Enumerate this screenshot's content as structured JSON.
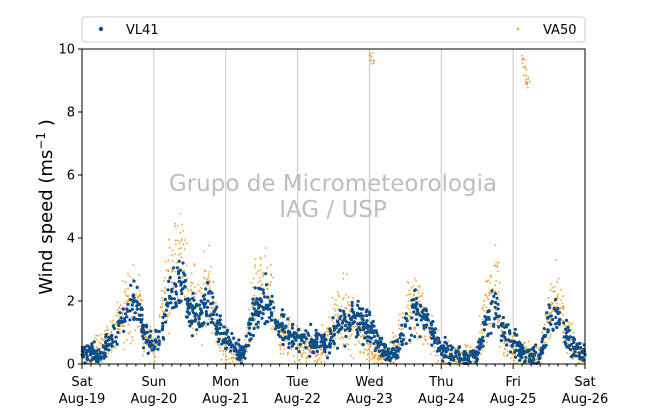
{
  "chart_data": {
    "type": "scatter",
    "ylabel": "Wind speed (ms",
    "ylabel_sup": "−1",
    "ylabel_close": " )",
    "ylim": [
      0,
      10
    ],
    "yticks": [
      "0",
      "2",
      "4",
      "6",
      "8",
      "10"
    ],
    "xlim": [
      "2017-08-19 00:00",
      "2017-08-26 00:00"
    ],
    "xticks": [
      {
        "day": "Sat",
        "date": "Aug-19"
      },
      {
        "day": "Sun",
        "date": "Aug-20"
      },
      {
        "day": "Mon",
        "date": "Aug-21"
      },
      {
        "day": "Tue",
        "date": "Aug-22"
      },
      {
        "day": "Wed",
        "date": "Aug-23"
      },
      {
        "day": "Thu",
        "date": "Aug-24"
      },
      {
        "day": "Fri",
        "date": "Aug-25"
      },
      {
        "day": "Sat",
        "date": "Aug-26"
      }
    ],
    "grid": "vertical",
    "legend_placement": "top",
    "watermark": [
      "Grupo de Micrometeorologia",
      "IAG / USP"
    ],
    "series": [
      {
        "name": "VL41",
        "color": "#0b4f8a",
        "marker": "dot",
        "x": [
          "Aug-19 00:00",
          "Aug-19 03:00",
          "Aug-19 06:00",
          "Aug-19 09:00",
          "Aug-19 12:00",
          "Aug-19 15:00",
          "Aug-19 18:00",
          "Aug-19 21:00",
          "Aug-20 00:00",
          "Aug-20 03:00",
          "Aug-20 06:00",
          "Aug-20 09:00",
          "Aug-20 12:00",
          "Aug-20 15:00",
          "Aug-20 18:00",
          "Aug-20 21:00",
          "Aug-21 00:00",
          "Aug-21 03:00",
          "Aug-21 06:00",
          "Aug-21 09:00",
          "Aug-21 12:00",
          "Aug-21 15:00",
          "Aug-21 18:00",
          "Aug-21 21:00",
          "Aug-22 00:00",
          "Aug-22 03:00",
          "Aug-22 06:00",
          "Aug-22 09:00",
          "Aug-22 12:00",
          "Aug-22 15:00",
          "Aug-22 18:00",
          "Aug-22 21:00",
          "Aug-23 00:00",
          "Aug-23 03:00",
          "Aug-23 06:00",
          "Aug-23 09:00",
          "Aug-23 12:00",
          "Aug-23 15:00",
          "Aug-23 18:00",
          "Aug-23 21:00",
          "Aug-24 00:00",
          "Aug-24 03:00",
          "Aug-24 06:00",
          "Aug-24 09:00",
          "Aug-24 12:00",
          "Aug-24 15:00",
          "Aug-24 18:00",
          "Aug-24 21:00",
          "Aug-25 00:00",
          "Aug-25 03:00",
          "Aug-25 06:00",
          "Aug-25 09:00",
          "Aug-25 12:00",
          "Aug-25 15:00",
          "Aug-25 18:00",
          "Aug-25 21:00",
          "Aug-26 00:00"
        ],
        "y": [
          0.3,
          0.4,
          0.2,
          0.6,
          1.0,
          1.5,
          2.0,
          1.0,
          0.5,
          1.2,
          2.3,
          2.6,
          1.8,
          1.5,
          2.0,
          1.2,
          0.8,
          0.5,
          0.3,
          1.4,
          2.0,
          1.9,
          1.2,
          1.0,
          0.9,
          0.8,
          0.7,
          0.6,
          0.9,
          1.3,
          1.4,
          1.3,
          1.2,
          0.6,
          0.3,
          0.4,
          1.2,
          1.8,
          1.5,
          1.0,
          0.5,
          0.3,
          0.3,
          0.2,
          0.3,
          1.4,
          1.8,
          1.0,
          0.7,
          0.4,
          0.3,
          0.2,
          1.5,
          1.6,
          0.8,
          0.5,
          0.3
        ]
      },
      {
        "name": "VA50",
        "color": "#f5a02c",
        "marker": "point",
        "x": [
          "Aug-19 00:00",
          "Aug-19 03:00",
          "Aug-19 06:00",
          "Aug-19 09:00",
          "Aug-19 12:00",
          "Aug-19 15:00",
          "Aug-19 18:00",
          "Aug-19 21:00",
          "Aug-20 00:00",
          "Aug-20 03:00",
          "Aug-20 06:00",
          "Aug-20 09:00",
          "Aug-20 12:00",
          "Aug-20 15:00",
          "Aug-20 18:00",
          "Aug-20 21:00",
          "Aug-21 00:00",
          "Aug-21 03:00",
          "Aug-21 06:00",
          "Aug-21 09:00",
          "Aug-21 12:00",
          "Aug-21 15:00",
          "Aug-21 18:00",
          "Aug-21 21:00",
          "Aug-22 00:00",
          "Aug-22 03:00",
          "Aug-22 06:00",
          "Aug-22 09:00",
          "Aug-22 12:00",
          "Aug-22 15:00",
          "Aug-22 18:00",
          "Aug-22 21:00",
          "Aug-23 00:00",
          "Aug-23 03:00",
          "Aug-23 06:00",
          "Aug-23 09:00",
          "Aug-23 12:00",
          "Aug-23 15:00",
          "Aug-23 18:00",
          "Aug-23 21:00",
          "Aug-24 00:00",
          "Aug-24 03:00",
          "Aug-24 06:00",
          "Aug-24 09:00",
          "Aug-24 12:00",
          "Aug-24 15:00",
          "Aug-24 18:00",
          "Aug-24 21:00",
          "Aug-25 00:00",
          "Aug-25 03:00",
          "Aug-25 06:00",
          "Aug-25 09:00",
          "Aug-25 12:00",
          "Aug-25 15:00",
          "Aug-25 18:00",
          "Aug-25 21:00",
          "Aug-26 00:00"
        ],
        "y": [
          0.2,
          0.3,
          0.5,
          0.8,
          1.2,
          1.8,
          2.2,
          0.9,
          0.4,
          1.5,
          3.0,
          3.5,
          2.0,
          1.8,
          2.5,
          1.0,
          0.6,
          0.4,
          0.2,
          1.8,
          2.5,
          2.0,
          1.0,
          0.8,
          0.6,
          0.5,
          0.4,
          0.6,
          1.2,
          1.6,
          1.5,
          1.0,
          0.5,
          0.3,
          0.2,
          0.5,
          1.3,
          2.2,
          1.6,
          0.8,
          0.3,
          0.2,
          0.2,
          0.2,
          0.4,
          1.8,
          2.5,
          0.9,
          0.5,
          0.3,
          0.2,
          0.3,
          1.6,
          2.2,
          0.8,
          0.4,
          0.3
        ],
        "outliers": [
          {
            "x": "Aug-23 00:30",
            "y": 9.9
          },
          {
            "x": "Aug-23 01:00",
            "y": 9.6
          },
          {
            "x": "Aug-25 03:30",
            "y": 9.7
          },
          {
            "x": "Aug-25 04:00",
            "y": 9.3
          },
          {
            "x": "Aug-25 04:30",
            "y": 9.0
          },
          {
            "x": "Aug-25 05:00",
            "y": 8.9
          }
        ]
      }
    ]
  }
}
